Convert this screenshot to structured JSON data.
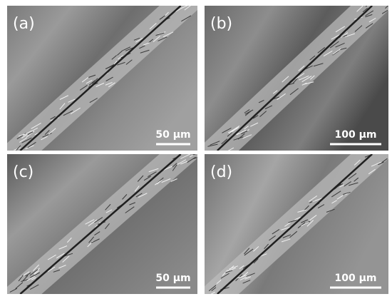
{
  "panels": [
    {
      "label": "(a)",
      "scale_bar": "50 µm"
    },
    {
      "label": "(b)",
      "scale_bar": "100 µm"
    },
    {
      "label": "(c)",
      "scale_bar": "50 µm"
    },
    {
      "label": "(d)",
      "scale_bar": "100 µm"
    }
  ]
}
